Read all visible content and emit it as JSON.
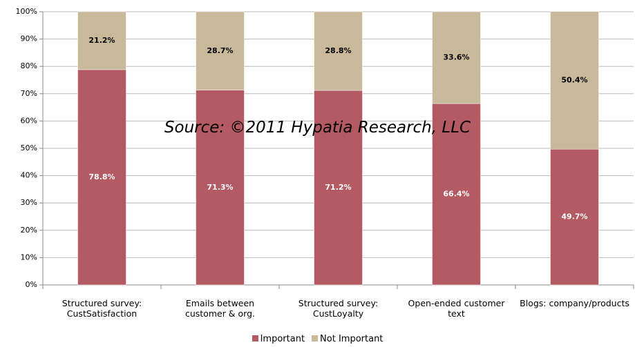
{
  "chart_data": {
    "type": "stacked_bar",
    "annotations": [
      "Source: ©2011 Hypatia Research, LLC"
    ],
    "categories": [
      "Structured survey: CustSatisfaction",
      "Emails between customer & org.",
      "Structured survey: CustLoyalty",
      "Open-ended customer text",
      "Blogs: company/products"
    ],
    "series": [
      {
        "name": "Important",
        "color": "#b35a63",
        "values": [
          78.8,
          71.3,
          71.2,
          66.4,
          49.7
        ],
        "value_labels": [
          "78.8%",
          "71.3%",
          "71.2%",
          "66.4%",
          "49.7%"
        ]
      },
      {
        "name": "Not Important",
        "color": "#c9b99b",
        "values": [
          21.2,
          28.7,
          28.8,
          33.6,
          50.4
        ],
        "value_labels": [
          "21.2%",
          "28.7%",
          "28.8%",
          "33.6%",
          "50.4%"
        ]
      }
    ],
    "ylim": [
      0,
      100
    ],
    "yticks": [
      {
        "value": 0,
        "label": "0%"
      },
      {
        "value": 10,
        "label": "10%"
      },
      {
        "value": 20,
        "label": "20%"
      },
      {
        "value": 30,
        "label": "30%"
      },
      {
        "value": 40,
        "label": "40%"
      },
      {
        "value": 50,
        "label": "50%"
      },
      {
        "value": 60,
        "label": "60%"
      },
      {
        "value": 70,
        "label": "70%"
      },
      {
        "value": 80,
        "label": "80%"
      },
      {
        "value": 90,
        "label": "90%"
      },
      {
        "value": 100,
        "label": "100%"
      }
    ],
    "grid": true,
    "legend": "bottom"
  }
}
